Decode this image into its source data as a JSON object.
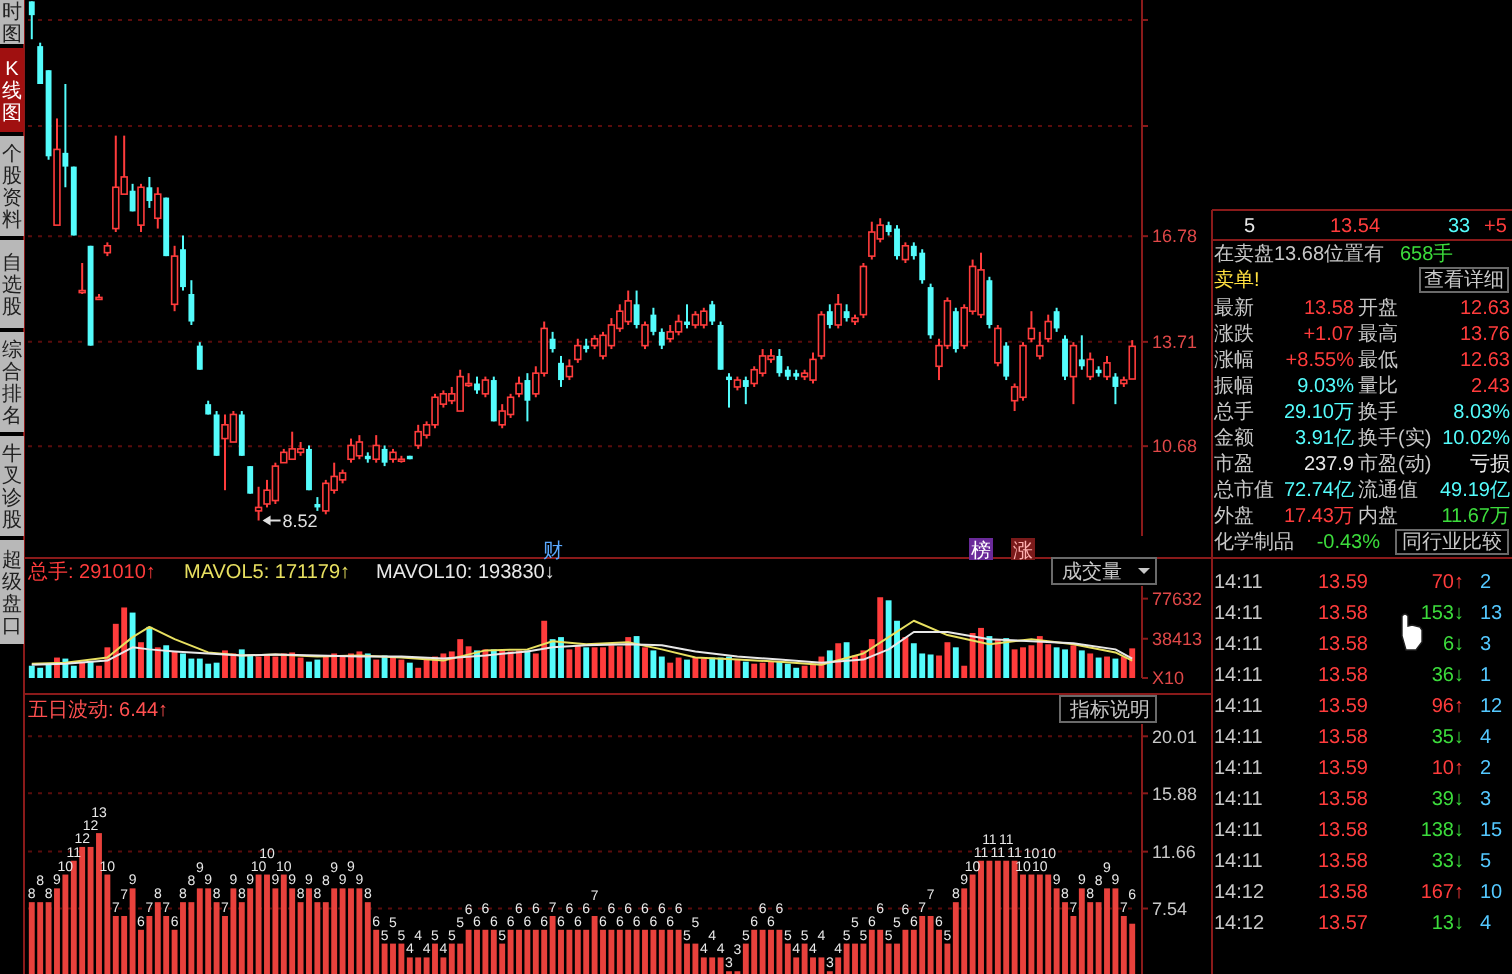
{
  "chart_data": [
    {
      "type": "candlestick",
      "categories": [
        null,
        null,
        null,
        null,
        null,
        null,
        null,
        null,
        null,
        null,
        null,
        null,
        null,
        null,
        null,
        null,
        null,
        null,
        null,
        null,
        null,
        null,
        null,
        null,
        null,
        null,
        null,
        null,
        null,
        null,
        null,
        null,
        null,
        null,
        null,
        null,
        null,
        null,
        null,
        null,
        null,
        null,
        null,
        null,
        null,
        null,
        null,
        null,
        null,
        null,
        null,
        null,
        null,
        null,
        null,
        null,
        null,
        null,
        null,
        null,
        null,
        null,
        null,
        null,
        null,
        null,
        null,
        null,
        null,
        null,
        null,
        null,
        null,
        null,
        null,
        null,
        null,
        null,
        null,
        null,
        null,
        null,
        null,
        null,
        null,
        null,
        null,
        null,
        null,
        null,
        null,
        null,
        null,
        null,
        null,
        null,
        null,
        null,
        null,
        null,
        null,
        null,
        null,
        null,
        null,
        null,
        null,
        null,
        null,
        null,
        null,
        null,
        null,
        null,
        null,
        null,
        null,
        null,
        null,
        null,
        null,
        null,
        null,
        null,
        null,
        null,
        null,
        null,
        null,
        null,
        null,
        null
      ],
      "ohlc": [
        [
          23.6,
          23.6,
          22.5,
          23.2
        ],
        [
          22.3,
          22.4,
          21.2,
          21.2
        ],
        [
          21.6,
          21.6,
          19.0,
          19.1
        ],
        [
          17.1,
          20.2,
          17.1,
          19.3
        ],
        [
          19.2,
          21.2,
          18.2,
          18.8
        ],
        [
          18.8,
          18.8,
          16.8,
          16.8
        ],
        [
          15.2,
          16.0,
          15.1,
          15.2
        ],
        [
          16.5,
          16.5,
          13.6,
          13.6
        ],
        [
          15.0,
          15.1,
          15.0,
          15.0
        ],
        [
          16.3,
          16.6,
          16.2,
          16.5
        ],
        [
          17.0,
          19.7,
          16.9,
          18.2
        ],
        [
          18.0,
          19.7,
          18.0,
          18.5
        ],
        [
          18.1,
          18.3,
          17.5,
          17.5
        ],
        [
          17.1,
          18.3,
          16.9,
          18.2
        ],
        [
          18.2,
          18.5,
          17.6,
          17.8
        ],
        [
          17.3,
          18.2,
          17.0,
          18.0
        ],
        [
          17.9,
          17.9,
          16.2,
          16.2
        ],
        [
          14.8,
          16.5,
          14.6,
          16.2
        ],
        [
          16.4,
          16.8,
          15.2,
          15.3
        ],
        [
          15.1,
          15.5,
          14.2,
          14.3
        ],
        [
          13.6,
          13.7,
          12.9,
          12.9
        ],
        [
          11.9,
          12.0,
          11.6,
          11.6
        ],
        [
          11.6,
          11.7,
          10.4,
          10.4
        ],
        [
          10.9,
          11.6,
          9.4,
          11.3
        ],
        [
          10.8,
          11.7,
          10.8,
          11.6
        ],
        [
          11.6,
          11.7,
          10.4,
          10.4
        ],
        [
          10.1,
          10.1,
          9.3,
          9.3
        ],
        [
          8.8,
          9.5,
          8.52,
          8.9
        ],
        [
          9.0,
          9.7,
          8.9,
          9.4
        ],
        [
          9.1,
          10.2,
          9.0,
          10.1
        ],
        [
          10.2,
          10.6,
          10.2,
          10.5
        ],
        [
          10.3,
          11.1,
          10.3,
          10.6
        ],
        [
          10.5,
          10.8,
          10.4,
          10.6
        ],
        [
          10.6,
          10.7,
          9.4,
          9.4
        ],
        [
          9.0,
          9.2,
          8.8,
          8.9
        ],
        [
          8.8,
          9.7,
          8.7,
          9.6
        ],
        [
          9.4,
          10.2,
          9.3,
          9.8
        ],
        [
          9.7,
          10.0,
          9.6,
          9.9
        ],
        [
          10.3,
          10.9,
          10.2,
          10.7
        ],
        [
          10.4,
          11.0,
          10.3,
          10.8
        ],
        [
          10.4,
          10.5,
          10.2,
          10.3
        ],
        [
          10.3,
          11.0,
          10.2,
          10.7
        ],
        [
          10.6,
          10.7,
          10.1,
          10.2
        ],
        [
          10.3,
          10.6,
          10.2,
          10.5
        ],
        [
          10.3,
          10.4,
          10.2,
          10.3
        ],
        [
          10.4,
          10.4,
          10.3,
          10.3
        ],
        [
          10.7,
          11.3,
          10.6,
          11.1
        ],
        [
          11.0,
          11.4,
          10.9,
          11.3
        ],
        [
          11.3,
          12.2,
          11.2,
          12.1
        ],
        [
          11.9,
          12.3,
          11.8,
          12.2
        ],
        [
          12.0,
          12.4,
          11.9,
          12.2
        ],
        [
          11.7,
          12.9,
          11.7,
          12.7
        ],
        [
          12.5,
          12.8,
          12.4,
          12.5
        ],
        [
          12.5,
          12.7,
          12.2,
          12.3
        ],
        [
          12.2,
          12.7,
          12.1,
          12.6
        ],
        [
          12.6,
          12.7,
          11.4,
          11.4
        ],
        [
          11.3,
          11.9,
          11.2,
          11.7
        ],
        [
          11.6,
          12.2,
          11.5,
          12.1
        ],
        [
          12.2,
          12.7,
          12.1,
          12.5
        ],
        [
          12.6,
          12.8,
          11.4,
          12.0
        ],
        [
          12.2,
          13.0,
          12.1,
          12.8
        ],
        [
          12.8,
          14.3,
          12.7,
          14.1
        ],
        [
          13.8,
          14.0,
          13.4,
          13.5
        ],
        [
          13.1,
          13.3,
          12.4,
          12.6
        ],
        [
          12.7,
          13.2,
          12.6,
          13.0
        ],
        [
          13.2,
          13.8,
          13.1,
          13.6
        ],
        [
          13.6,
          13.8,
          13.4,
          13.5
        ],
        [
          13.6,
          13.9,
          13.5,
          13.8
        ],
        [
          13.3,
          14.0,
          13.2,
          13.9
        ],
        [
          13.6,
          14.4,
          13.5,
          14.2
        ],
        [
          14.1,
          14.8,
          14.0,
          14.6
        ],
        [
          14.3,
          15.2,
          14.2,
          14.9
        ],
        [
          14.8,
          15.2,
          14.1,
          14.2
        ],
        [
          13.6,
          14.3,
          13.5,
          14.2
        ],
        [
          14.5,
          14.7,
          13.9,
          14.0
        ],
        [
          14.0,
          14.1,
          13.5,
          13.6
        ],
        [
          13.8,
          14.2,
          13.7,
          14.0
        ],
        [
          14.0,
          14.5,
          13.9,
          14.3
        ],
        [
          14.3,
          14.8,
          14.1,
          14.2
        ],
        [
          14.2,
          14.6,
          14.1,
          14.5
        ],
        [
          14.2,
          14.7,
          14.1,
          14.6
        ],
        [
          14.8,
          14.9,
          14.2,
          14.3
        ],
        [
          14.2,
          14.3,
          12.9,
          12.9
        ],
        [
          12.7,
          12.8,
          11.8,
          12.6
        ],
        [
          12.4,
          12.7,
          12.3,
          12.6
        ],
        [
          12.6,
          12.7,
          11.9,
          12.4
        ],
        [
          12.5,
          13.0,
          12.4,
          12.9
        ],
        [
          12.8,
          13.5,
          12.7,
          13.3
        ],
        [
          13.2,
          13.5,
          13.1,
          13.3
        ],
        [
          13.3,
          13.5,
          12.7,
          12.8
        ],
        [
          12.9,
          13.0,
          12.6,
          12.7
        ],
        [
          12.8,
          12.9,
          12.6,
          12.7
        ],
        [
          12.7,
          12.9,
          12.6,
          12.8
        ],
        [
          12.6,
          13.4,
          12.5,
          13.2
        ],
        [
          13.3,
          14.6,
          13.2,
          14.5
        ],
        [
          14.6,
          14.8,
          14.1,
          14.2
        ],
        [
          14.2,
          15.1,
          14.1,
          14.8
        ],
        [
          14.6,
          14.8,
          14.3,
          14.4
        ],
        [
          14.3,
          14.5,
          14.2,
          14.4
        ],
        [
          14.5,
          16.0,
          14.4,
          15.9
        ],
        [
          16.2,
          17.2,
          16.1,
          16.9
        ],
        [
          16.7,
          17.3,
          16.6,
          17.1
        ],
        [
          17.1,
          17.2,
          16.8,
          16.9
        ],
        [
          17.0,
          17.1,
          16.1,
          16.2
        ],
        [
          16.1,
          16.6,
          16.0,
          16.5
        ],
        [
          16.5,
          16.6,
          16.1,
          16.2
        ],
        [
          16.3,
          16.4,
          15.4,
          15.5
        ],
        [
          15.3,
          15.4,
          13.8,
          13.9
        ],
        [
          13.0,
          13.8,
          12.6,
          13.6
        ],
        [
          13.6,
          15.0,
          13.5,
          14.9
        ],
        [
          14.6,
          14.7,
          13.4,
          13.5
        ],
        [
          13.6,
          14.8,
          13.5,
          14.7
        ],
        [
          14.6,
          16.1,
          14.5,
          15.9
        ],
        [
          14.5,
          16.3,
          14.4,
          15.8
        ],
        [
          15.5,
          15.6,
          14.1,
          14.2
        ],
        [
          13.1,
          14.2,
          13.0,
          14.1
        ],
        [
          13.6,
          13.7,
          12.6,
          12.7
        ],
        [
          12.0,
          12.5,
          11.7,
          12.4
        ],
        [
          12.1,
          13.7,
          12.0,
          13.6
        ],
        [
          13.8,
          14.6,
          13.7,
          14.1
        ],
        [
          13.3,
          14.0,
          13.2,
          13.6
        ],
        [
          13.8,
          14.5,
          13.7,
          14.3
        ],
        [
          14.6,
          14.7,
          14.0,
          14.1
        ],
        [
          13.8,
          13.9,
          12.6,
          12.7
        ],
        [
          12.7,
          13.7,
          11.9,
          13.6
        ],
        [
          13.2,
          13.9,
          12.9,
          13.0
        ],
        [
          12.7,
          13.4,
          12.6,
          13.2
        ],
        [
          12.9,
          13.0,
          12.7,
          12.8
        ],
        [
          12.7,
          13.3,
          12.6,
          13.1
        ],
        [
          12.7,
          12.8,
          11.9,
          12.4
        ],
        [
          12.5,
          12.7,
          12.4,
          12.6
        ],
        [
          12.63,
          13.76,
          12.63,
          13.58
        ]
      ],
      "ylim": [
        8.07,
        23.64
      ],
      "yticks": [
        {
          "value": 23.06,
          "label": null
        },
        {
          "value": 19.98,
          "label": null
        },
        16.78,
        13.71,
        10.68
      ],
      "grid": "y",
      "tick_labels": "y",
      "annotations": [
        "8.52",
        "财",
        "榜",
        "涨"
      ]
    },
    {
      "type": "bar",
      "categories": [
        null,
        null,
        null,
        null,
        null,
        null,
        null,
        null,
        null,
        null,
        null,
        null,
        null,
        null,
        null,
        null,
        null,
        null,
        null,
        null,
        null,
        null,
        null,
        null,
        null,
        null,
        null,
        null,
        null,
        null,
        null,
        null,
        null,
        null,
        null,
        null,
        null,
        null,
        null,
        null,
        null,
        null,
        null,
        null,
        null,
        null,
        null,
        null,
        null,
        null,
        null,
        null,
        null,
        null,
        null,
        null,
        null,
        null,
        null,
        null,
        null,
        null,
        null,
        null,
        null,
        null,
        null,
        null,
        null,
        null,
        null,
        null,
        null,
        null,
        null,
        null,
        null,
        null,
        null,
        null,
        null,
        null,
        null,
        null,
        null,
        null,
        null,
        null,
        null,
        null,
        null,
        null,
        null,
        null,
        null,
        null,
        null,
        null,
        null,
        null,
        null,
        null,
        null,
        null,
        null,
        null,
        null,
        null,
        null,
        null,
        null,
        null,
        null,
        null,
        null,
        null,
        null,
        null,
        null,
        null,
        null,
        null,
        null,
        null,
        null,
        null,
        null,
        null,
        null,
        null,
        null,
        null
      ],
      "series": [
        {
          "type": "bar",
          "values": [
            12000,
            10000,
            14000,
            20000,
            19000,
            12000,
            15000,
            16000,
            12000,
            30000,
            53000,
            69000,
            64000,
            35000,
            50000,
            30000,
            32000,
            26000,
            24000,
            19000,
            19000,
            14000,
            15000,
            27000,
            24000,
            28000,
            22000,
            21000,
            22000,
            21000,
            24000,
            25000,
            20000,
            16000,
            18000,
            21000,
            24000,
            21000,
            24000,
            26000,
            24000,
            18000,
            22000,
            21000,
            18000,
            15000,
            10000,
            20000,
            21000,
            24000,
            26000,
            38000,
            31000,
            27000,
            28000,
            28000,
            27000,
            26000,
            27000,
            27000,
            24000,
            56000,
            38000,
            40000,
            28000,
            32000,
            30000,
            30000,
            30000,
            32000,
            31000,
            40000,
            41000,
            30000,
            27000,
            21000,
            15000,
            20000,
            18000,
            20000,
            19000,
            20000,
            20000,
            21000,
            18000,
            16000,
            14000,
            15000,
            16000,
            16000,
            14000,
            10000,
            12000,
            14000,
            21000,
            27000,
            34000,
            35000,
            22000,
            27000,
            38000,
            79000,
            76000,
            56000,
            40000,
            34000,
            24000,
            23000,
            22000,
            35000,
            30000,
            12000,
            44000,
            49000,
            41000,
            38000,
            39000,
            28000,
            30000,
            32000,
            41000,
            33000,
            30000,
            28000,
            32000,
            27000,
            24000,
            20000,
            21000,
            19000,
            21000,
            29000
          ],
          "colors": [
            "#54fcfc",
            "#54fcfc",
            "#54fcfc",
            "#ff3c3c",
            "#54fcfc",
            "#54fcfc",
            "#ff3c3c",
            "#54fcfc",
            "#ff3c3c",
            "#ff3c3c",
            "#ff3c3c",
            "#ff3c3c",
            "#54fcfc",
            "#ff3c3c",
            "#54fcfc",
            "#ff3c3c",
            "#54fcfc",
            "#ff3c3c",
            "#54fcfc",
            "#54fcfc",
            "#54fcfc",
            "#54fcfc",
            "#54fcfc",
            "#ff3c3c",
            "#ff3c3c",
            "#54fcfc",
            "#54fcfc",
            "#ff3c3c",
            "#ff3c3c",
            "#ff3c3c",
            "#ff3c3c",
            "#ff3c3c",
            "#ff3c3c",
            "#54fcfc",
            "#54fcfc",
            "#ff3c3c",
            "#ff3c3c",
            "#ff3c3c",
            "#ff3c3c",
            "#ff3c3c",
            "#54fcfc",
            "#ff3c3c",
            "#54fcfc",
            "#ff3c3c",
            "#ff3c3c",
            "#54fcfc",
            "#ff3c3c",
            "#ff3c3c",
            "#ff3c3c",
            "#ff3c3c",
            "#ff3c3c",
            "#ff3c3c",
            "#ff3c3c",
            "#54fcfc",
            "#ff3c3c",
            "#54fcfc",
            "#ff3c3c",
            "#ff3c3c",
            "#ff3c3c",
            "#54fcfc",
            "#ff3c3c",
            "#ff3c3c",
            "#54fcfc",
            "#54fcfc",
            "#ff3c3c",
            "#ff3c3c",
            "#54fcfc",
            "#ff3c3c",
            "#ff3c3c",
            "#ff3c3c",
            "#ff3c3c",
            "#ff3c3c",
            "#54fcfc",
            "#ff3c3c",
            "#54fcfc",
            "#54fcfc",
            "#ff3c3c",
            "#ff3c3c",
            "#54fcfc",
            "#ff3c3c",
            "#ff3c3c",
            "#54fcfc",
            "#54fcfc",
            "#54fcfc",
            "#ff3c3c",
            "#54fcfc",
            "#ff3c3c",
            "#ff3c3c",
            "#ff3c3c",
            "#54fcfc",
            "#54fcfc",
            "#54fcfc",
            "#ff3c3c",
            "#ff3c3c",
            "#ff3c3c",
            "#54fcfc",
            "#ff3c3c",
            "#54fcfc",
            "#ff3c3c",
            "#ff3c3c",
            "#ff3c3c",
            "#ff3c3c",
            "#54fcfc",
            "#54fcfc",
            "#ff3c3c",
            "#54fcfc",
            "#54fcfc",
            "#54fcfc",
            "#ff3c3c",
            "#ff3c3c",
            "#54fcfc",
            "#ff3c3c",
            "#ff3c3c",
            "#ff3c3c",
            "#54fcfc",
            "#ff3c3c",
            "#54fcfc",
            "#ff3c3c",
            "#ff3c3c",
            "#ff3c3c",
            "#ff3c3c",
            "#ff3c3c",
            "#54fcfc",
            "#54fcfc",
            "#ff3c3c",
            "#54fcfc",
            "#ff3c3c",
            "#54fcfc",
            "#ff3c3c",
            "#54fcfc",
            "#ff3c3c",
            "#ff3c3c"
          ]
        },
        {
          "type": "line",
          "color": "#e8e060",
          "values": [
            14000,
            null,
            null,
            null,
            15000,
            null,
            null,
            null,
            null,
            20000,
            null,
            null,
            40000,
            null,
            50000,
            null,
            null,
            38000,
            null,
            null,
            null,
            25000,
            null,
            null,
            null,
            22000,
            null,
            null,
            null,
            23000,
            null,
            null,
            null,
            null,
            21000,
            null,
            null,
            null,
            null,
            22000,
            null,
            null,
            null,
            null,
            20000,
            null,
            null,
            null,
            null,
            17000,
            null,
            null,
            null,
            null,
            27000,
            null,
            null,
            null,
            null,
            28000,
            null,
            null,
            36000,
            null,
            null,
            null,
            33000,
            null,
            null,
            null,
            null,
            35000,
            null,
            null,
            null,
            28000,
            null,
            null,
            null,
            20000,
            null,
            null,
            null,
            null,
            18000,
            null,
            null,
            null,
            null,
            16000,
            null,
            null,
            null,
            null,
            13000,
            null,
            null,
            null,
            null,
            24000,
            null,
            null,
            40000,
            null,
            null,
            56000,
            null,
            null,
            null,
            42000,
            null,
            null,
            null,
            null,
            33000,
            null,
            null,
            null,
            null,
            38000,
            null,
            null,
            null,
            null,
            33000,
            null,
            null,
            null,
            null,
            25000,
            null,
            17000
          ]
        },
        {
          "type": "line",
          "color": "#e8e8e8",
          "values": [
            13000,
            null,
            null,
            null,
            14000,
            null,
            null,
            null,
            null,
            17000,
            null,
            null,
            30000,
            null,
            28000,
            null,
            null,
            26000,
            null,
            null,
            null,
            24000,
            null,
            null,
            null,
            22000,
            null,
            null,
            null,
            23000,
            null,
            null,
            null,
            null,
            22000,
            null,
            null,
            null,
            null,
            21000,
            null,
            null,
            null,
            null,
            21000,
            null,
            null,
            null,
            null,
            19000,
            null,
            null,
            null,
            null,
            22000,
            null,
            null,
            null,
            null,
            26000,
            null,
            null,
            30000,
            null,
            null,
            null,
            32000,
            null,
            null,
            null,
            null,
            33000,
            null,
            null,
            null,
            32000,
            null,
            null,
            null,
            26000,
            null,
            null,
            null,
            null,
            21000,
            null,
            null,
            null,
            null,
            18000,
            null,
            null,
            null,
            null,
            15000,
            null,
            null,
            null,
            null,
            18000,
            null,
            null,
            28000,
            null,
            null,
            45000,
            null,
            null,
            null,
            45000,
            null,
            null,
            null,
            null,
            38000,
            null,
            null,
            null,
            null,
            36000,
            null,
            null,
            null,
            null,
            34000,
            null,
            null,
            null,
            null,
            28000,
            null,
            19000
          ]
        }
      ],
      "ylim": [
        0,
        90000
      ],
      "yticks": [
        77632,
        38413,
        {
          "value": 0,
          "label": "X10"
        }
      ],
      "tick_labels": "y",
      "annotations": [
        "总手: 291010↑",
        "MAVOL5: 171179↑",
        "MAVOL10: 193830↓",
        "成交量"
      ]
    },
    {
      "type": "bar",
      "title": "五日波动: 6.44↑",
      "color": "#e8413c",
      "categories": [
        null,
        null,
        null,
        null,
        null,
        null,
        null,
        null,
        null,
        null,
        null,
        null,
        null,
        null,
        null,
        null,
        null,
        null,
        null,
        null,
        null,
        null,
        null,
        null,
        null,
        null,
        null,
        null,
        null,
        null,
        null,
        null,
        null,
        null,
        null,
        null,
        null,
        null,
        null,
        null,
        null,
        null,
        null,
        null,
        null,
        null,
        null,
        null,
        null,
        null,
        null,
        null,
        null,
        null,
        null,
        null,
        null,
        null,
        null,
        null,
        null,
        null,
        null,
        null,
        null,
        null,
        null,
        null,
        null,
        null,
        null,
        null,
        null,
        null,
        null,
        null,
        null,
        null,
        null,
        null,
        null,
        null,
        null,
        null,
        null,
        null,
        null,
        null,
        null,
        null,
        null,
        null,
        null,
        null,
        null,
        null,
        null,
        null,
        null,
        null,
        null,
        null,
        null,
        null,
        null,
        null,
        null,
        null,
        null,
        null,
        null,
        null,
        null,
        null,
        null,
        null,
        null,
        null,
        null,
        null,
        null,
        null,
        null,
        null,
        null,
        null,
        null,
        null,
        null,
        null,
        null,
        null
      ],
      "values": [
        8,
        8,
        8,
        9,
        10,
        11,
        12,
        12,
        13,
        10,
        7,
        7,
        9,
        6,
        7,
        8,
        7,
        6,
        8,
        8,
        9,
        9,
        8,
        7,
        9,
        8,
        9,
        10,
        10,
        9,
        10,
        9,
        8,
        9,
        8,
        8,
        9,
        9,
        9,
        9,
        8,
        6,
        5,
        5,
        5,
        4,
        4,
        4,
        5,
        4,
        5,
        5,
        6,
        6,
        6,
        6,
        5,
        6,
        6,
        6,
        6,
        6,
        7,
        6,
        6,
        6,
        6,
        7,
        6,
        6,
        6,
        6,
        6,
        6,
        6,
        6,
        6,
        6,
        5,
        5,
        4,
        4,
        4,
        3,
        3,
        5,
        6,
        6,
        6,
        6,
        5,
        4,
        5,
        4,
        4,
        3,
        4,
        5,
        5,
        5,
        6,
        6,
        5,
        5,
        6,
        6,
        7,
        7,
        6,
        5,
        8,
        9,
        10,
        11,
        11,
        11,
        11,
        11,
        10,
        10,
        10,
        10,
        9,
        8,
        7,
        9,
        8,
        8,
        9,
        9,
        7,
        6.44
      ],
      "value_labels": [
        "8",
        "8",
        "8",
        "9",
        "10",
        "11",
        "12",
        "12",
        "13",
        "10",
        "7",
        "7",
        "9",
        "6",
        "7",
        "8",
        "7",
        "6",
        "8",
        "8",
        "9",
        "9",
        "8",
        "7",
        "9",
        "8",
        "9",
        "10",
        "10",
        "9",
        "10",
        "9",
        "8",
        "9",
        "8",
        "8",
        "9",
        "9",
        "9",
        "9",
        "8",
        "6",
        "5",
        "5",
        "5",
        "4",
        "4",
        "4",
        "5",
        "4",
        "5",
        "5",
        "6",
        "6",
        "6",
        "6",
        "5",
        "6",
        "6",
        "6",
        "6",
        "6",
        "7",
        "6",
        "6",
        "6",
        "6",
        "7",
        "6",
        "6",
        "6",
        "6",
        "6",
        "6",
        "6",
        "6",
        "6",
        "6",
        "5",
        "5",
        "4",
        "4",
        "4",
        "3",
        "3",
        "5",
        "6",
        "6",
        "6",
        "6",
        "5",
        "4",
        "5",
        "4",
        "4",
        "3",
        "4",
        "5",
        "5",
        "5",
        "6",
        "6",
        "5",
        "5",
        "6",
        "6",
        "7",
        "7",
        "6",
        "5",
        "8",
        "9",
        "10",
        "11",
        "11",
        "11",
        "11",
        "11",
        "10",
        "10",
        "10",
        "10",
        "9",
        "8",
        "7",
        "9",
        "8",
        "8",
        "9",
        "9",
        "7",
        "6"
      ],
      "ylim": [
        2.8,
        20.9
      ],
      "yticks": [
        20.01,
        15.88,
        11.66,
        7.54
      ],
      "grid": "y",
      "tick_labels": "y",
      "annotations": [
        "指标说明"
      ]
    },
    {
      "type": "other",
      "annotations": [
        "时图",
        "K线图",
        "个股资料",
        "自选股",
        "综合排名",
        "牛叉诊股",
        "超级盘口"
      ]
    },
    {
      "type": "other",
      "annotations": [
        "5 13.54 33 +5",
        "在卖盘13.68位置有 658手",
        "卖单! 查看详细",
        "最新 13.58 开盘 12.63",
        "涨跌 +1.07 最高 13.76",
        "涨幅 +8.55% 最低 12.63",
        "振幅 9.03% 量比 2.43",
        "总手 29.10万 换手 8.03%",
        "金额 3.91亿 换手(实) 10.02%",
        "市盈 237.9 市盈(动) 亏损",
        "总市值 72.74亿 流通值 49.19亿",
        "外盘 17.43万 内盘 11.67万",
        "化学制品 -0.43% 同行业比较",
        "14:11 13.59 70↑ 2",
        "14:11 13.58 153↓ 13",
        "14:11 13.58 6↓ 3",
        "14:11 13.58 36↓ 1",
        "14:11 13.59 96↑ 12",
        "14:11 13.58 35↓ 4",
        "14:11 13.59 10↑ 2",
        "14:11 13.58 39↓ 3",
        "14:11 13.58 138↓ 15",
        "14:11 13.58 33↓ 5",
        "14:12 13.58 167↑ 10",
        "14:12 13.57 13↓ 4"
      ]
    }
  ]
}
